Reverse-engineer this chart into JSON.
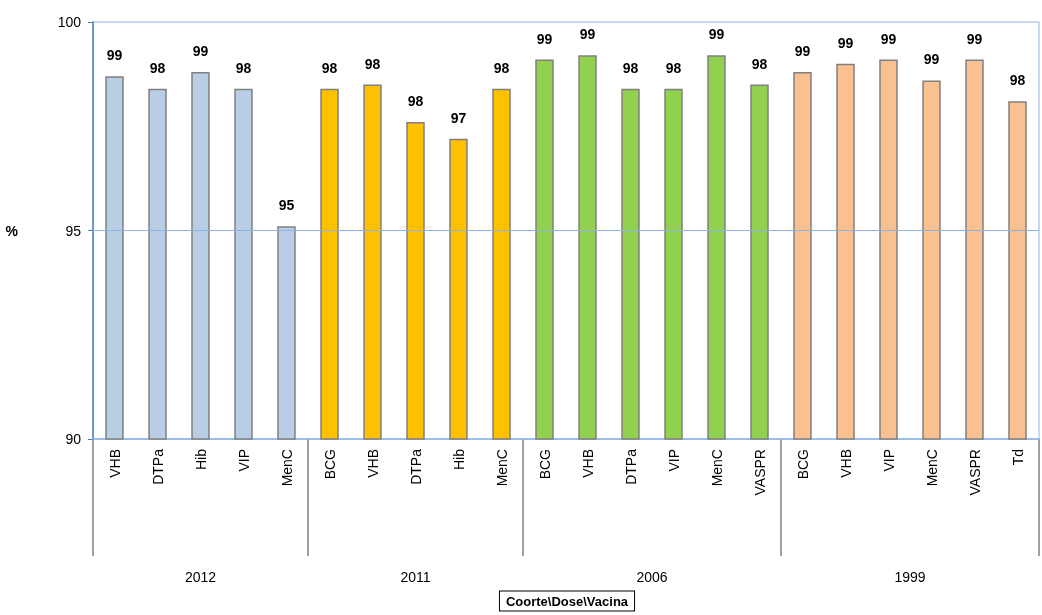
{
  "chart_data": {
    "type": "bar",
    "ylabel": "%",
    "categories": [
      "VHB",
      "DTPa",
      "Hib",
      "VIP",
      "MenC",
      "BCG",
      "VHB",
      "DTPa",
      "Hib",
      "MenC",
      "BCG",
      "VHB",
      "DTPa",
      "VIP",
      "MenC",
      "VASPR",
      "BCG",
      "VHB",
      "VIP",
      "MenC",
      "VASPR",
      "Td"
    ],
    "series": [
      {
        "color": "#b9cde5",
        "values": [
          98.7,
          98.4,
          98.8,
          98.4,
          95.1,
          null,
          null,
          null,
          null,
          null,
          null,
          null,
          null,
          null,
          null,
          null,
          null,
          null,
          null,
          null,
          null,
          null
        ],
        "value_labels": [
          "99",
          "98",
          "99",
          "98",
          "95",
          null,
          null,
          null,
          null,
          null,
          null,
          null,
          null,
          null,
          null,
          null,
          null,
          null,
          null,
          null,
          null,
          null
        ]
      },
      {
        "color": "#ffc000",
        "values": [
          null,
          null,
          null,
          null,
          null,
          98.4,
          98.5,
          97.6,
          97.2,
          98.4,
          null,
          null,
          null,
          null,
          null,
          null,
          null,
          null,
          null,
          null,
          null,
          null
        ],
        "value_labels": [
          null,
          null,
          null,
          null,
          null,
          "98",
          "98",
          "98",
          "97",
          "98",
          null,
          null,
          null,
          null,
          null,
          null,
          null,
          null,
          null,
          null,
          null,
          null
        ]
      },
      {
        "color": "#92d050",
        "values": [
          null,
          null,
          null,
          null,
          null,
          null,
          null,
          null,
          null,
          null,
          99.1,
          99.2,
          98.4,
          98.4,
          99.2,
          98.5,
          null,
          null,
          null,
          null,
          null,
          null
        ],
        "value_labels": [
          null,
          null,
          null,
          null,
          null,
          null,
          null,
          null,
          null,
          null,
          "99",
          "99",
          "98",
          "98",
          "99",
          "98",
          null,
          null,
          null,
          null,
          null,
          null
        ]
      },
      {
        "color": "#fac090",
        "values": [
          null,
          null,
          null,
          null,
          null,
          null,
          null,
          null,
          null,
          null,
          null,
          null,
          null,
          null,
          null,
          null,
          98.8,
          99.0,
          99.1,
          98.6,
          99.1,
          98.1
        ],
        "value_labels": [
          null,
          null,
          null,
          null,
          null,
          null,
          null,
          null,
          null,
          null,
          null,
          null,
          null,
          null,
          null,
          null,
          "99",
          "99",
          "99",
          "99",
          "99",
          "98"
        ]
      }
    ],
    "annotations": [
      "2012",
      "2011",
      "2006",
      "1999",
      "Coorte\\Dose\\Vacina"
    ],
    "ylim": [
      90,
      100
    ],
    "yticks": [
      90,
      95,
      100
    ],
    "ref_lines": [
      {
        "axis": "y",
        "value": 95,
        "color": "#8eb4e3"
      }
    ]
  }
}
